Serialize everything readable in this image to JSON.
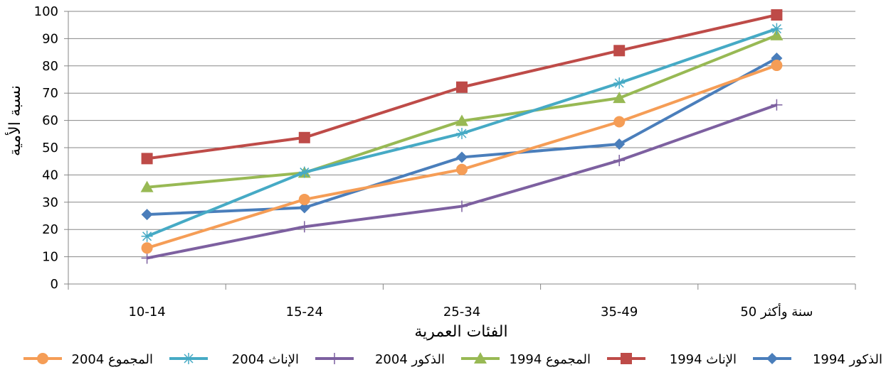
{
  "chart_data": {
    "type": "line",
    "title": "",
    "xlabel": "الفئات العمرية",
    "ylabel": "نسبة الأمية",
    "ylim": [
      0,
      100
    ],
    "ytick_step": 10,
    "grid": true,
    "legend_position": "bottom",
    "categories": [
      "10-14",
      "15-24",
      "25-34",
      "35-49",
      "50 سنة وأكثر"
    ],
    "series": [
      {
        "name": "1994 الذكور",
        "color": "#4a7ebb",
        "marker": "diamond",
        "values": [
          25.5,
          28,
          46.5,
          51.3,
          82.8
        ]
      },
      {
        "name": "1994 الإناث",
        "color": "#be4b48",
        "marker": "square",
        "values": [
          46,
          53.7,
          72.2,
          85.6,
          98.7
        ]
      },
      {
        "name": "1994 المجموع",
        "color": "#98b954",
        "marker": "triangle",
        "values": [
          35.5,
          40.8,
          59.8,
          68.2,
          91.2
        ]
      },
      {
        "name": "2004 الذكور",
        "color": "#7d60a0",
        "marker": "plus",
        "values": [
          9.5,
          21,
          28.5,
          45.3,
          65.7
        ]
      },
      {
        "name": "2004 الإناث",
        "color": "#46aac5",
        "marker": "star",
        "values": [
          17.5,
          41,
          55.2,
          73.7,
          93.6
        ]
      },
      {
        "name": "2004 المجموع",
        "color": "#f59d56",
        "marker": "circle",
        "values": [
          13.2,
          31,
          42,
          59.5,
          80.2
        ]
      }
    ]
  }
}
